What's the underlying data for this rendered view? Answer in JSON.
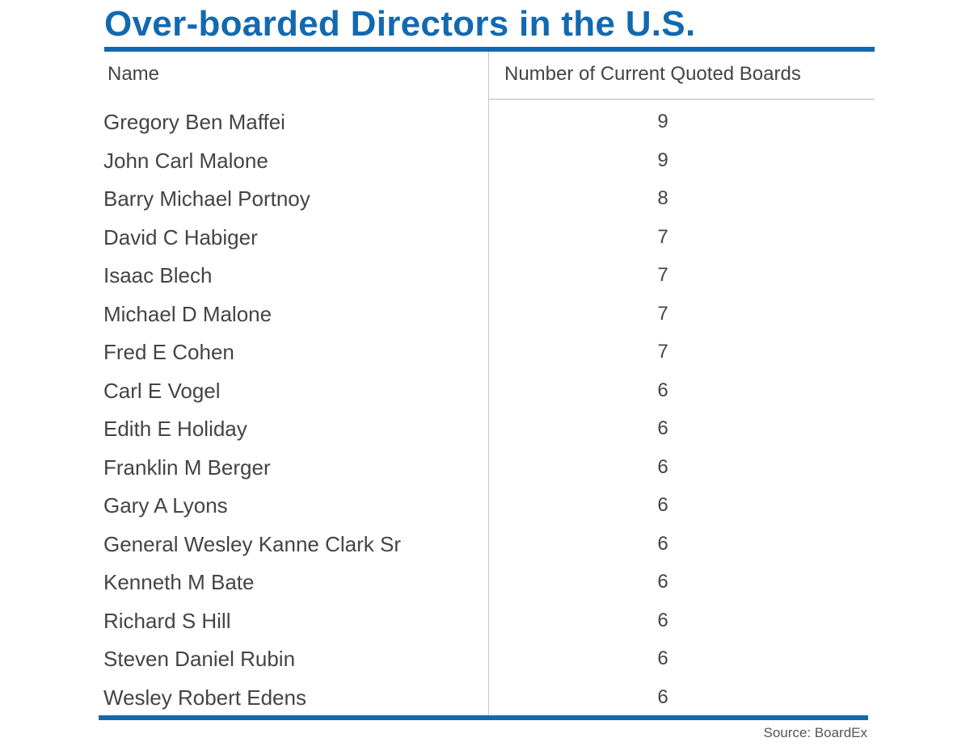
{
  "title": "Over-boarded Directors in the U.S.",
  "source": "Source: BoardEx",
  "colors": {
    "accent": "#1269b0",
    "text": "#444444",
    "divider": "#c8c8c8"
  },
  "chart_data": {
    "type": "table",
    "title": "Over-boarded Directors in the U.S.",
    "columns": [
      "Name",
      "Number of Current Quoted Boards"
    ],
    "rows": [
      {
        "name": "Gregory Ben Maffei",
        "boards": 9
      },
      {
        "name": "John Carl Malone",
        "boards": 9
      },
      {
        "name": "Barry Michael Portnoy",
        "boards": 8
      },
      {
        "name": "David C Habiger",
        "boards": 7
      },
      {
        "name": "Isaac Blech",
        "boards": 7
      },
      {
        "name": "Michael D Malone",
        "boards": 7
      },
      {
        "name": "Fred E Cohen",
        "boards": 7
      },
      {
        "name": "Carl E Vogel",
        "boards": 6
      },
      {
        "name": "Edith E Holiday",
        "boards": 6
      },
      {
        "name": "Franklin M Berger",
        "boards": 6
      },
      {
        "name": "Gary A Lyons",
        "boards": 6
      },
      {
        "name": "General Wesley Kanne Clark Sr",
        "boards": 6
      },
      {
        "name": "Kenneth M Bate",
        "boards": 6
      },
      {
        "name": "Richard S Hill",
        "boards": 6
      },
      {
        "name": "Steven Daniel Rubin",
        "boards": 6
      },
      {
        "name": "Wesley Robert Edens",
        "boards": 6
      }
    ],
    "source": "Source: BoardEx"
  }
}
